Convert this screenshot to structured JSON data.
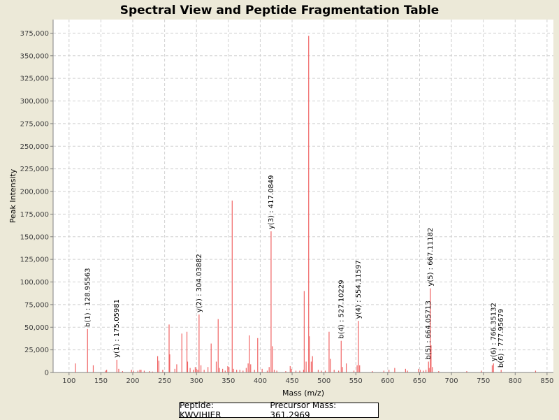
{
  "chart_data": {
    "type": "bar",
    "title": "Spectral View and Peptide Fragmentation Table",
    "xlabel": "Mass (m/z)",
    "ylabel": "Peak Intensity",
    "xlim": [
      75,
      860
    ],
    "ylim": [
      0,
      390000
    ],
    "grid": true,
    "xticks": [
      100,
      150,
      200,
      250,
      300,
      350,
      400,
      450,
      500,
      550,
      600,
      650,
      700,
      750,
      800,
      850
    ],
    "yticks": [
      0,
      25000,
      50000,
      75000,
      100000,
      125000,
      150000,
      175000,
      200000,
      225000,
      250000,
      275000,
      300000,
      325000,
      350000,
      375000
    ],
    "series_color": "#f06464",
    "peaks": [
      [
        110,
        10000
      ],
      [
        129,
        48000
      ],
      [
        138,
        8000
      ],
      [
        157,
        2000
      ],
      [
        159,
        3000
      ],
      [
        175,
        14000
      ],
      [
        178,
        4000
      ],
      [
        184,
        1500
      ],
      [
        198,
        3000
      ],
      [
        201,
        2000
      ],
      [
        208,
        2000
      ],
      [
        211,
        3000
      ],
      [
        213,
        3000
      ],
      [
        218,
        2000
      ],
      [
        226,
        1500
      ],
      [
        231,
        1000
      ],
      [
        239,
        18000
      ],
      [
        241,
        13000
      ],
      [
        247,
        3000
      ],
      [
        257,
        53000
      ],
      [
        258,
        20000
      ],
      [
        266,
        4000
      ],
      [
        269,
        9000
      ],
      [
        277,
        43000
      ],
      [
        285,
        45000
      ],
      [
        286,
        12000
      ],
      [
        290,
        5000
      ],
      [
        295,
        3000
      ],
      [
        298,
        6000
      ],
      [
        300,
        4000
      ],
      [
        302,
        3000
      ],
      [
        304,
        64000
      ],
      [
        307,
        8000
      ],
      [
        312,
        3000
      ],
      [
        318,
        6000
      ],
      [
        323,
        32000
      ],
      [
        331,
        12000
      ],
      [
        334,
        59000
      ],
      [
        336,
        5000
      ],
      [
        341,
        4000
      ],
      [
        345,
        2000
      ],
      [
        349,
        7000
      ],
      [
        351,
        6000
      ],
      [
        356,
        190000
      ],
      [
        358,
        4000
      ],
      [
        363,
        3000
      ],
      [
        368,
        3000
      ],
      [
        373,
        2000
      ],
      [
        378,
        5000
      ],
      [
        381,
        10000
      ],
      [
        383,
        41000
      ],
      [
        385,
        9000
      ],
      [
        391,
        3000
      ],
      [
        396,
        38000
      ],
      [
        403,
        4000
      ],
      [
        411,
        2000
      ],
      [
        414,
        6000
      ],
      [
        417,
        156000
      ],
      [
        419,
        29000
      ],
      [
        422,
        3000
      ],
      [
        426,
        2000
      ],
      [
        440,
        1500
      ],
      [
        447,
        7000
      ],
      [
        449,
        4000
      ],
      [
        456,
        2000
      ],
      [
        462,
        2000
      ],
      [
        468,
        3000
      ],
      [
        469,
        90000
      ],
      [
        472,
        12000
      ],
      [
        476,
        372000
      ],
      [
        477,
        40000
      ],
      [
        480,
        12000
      ],
      [
        482,
        18000
      ],
      [
        491,
        3000
      ],
      [
        496,
        2000
      ],
      [
        502,
        2000
      ],
      [
        508,
        45000
      ],
      [
        510,
        15000
      ],
      [
        516,
        3000
      ],
      [
        523,
        2000
      ],
      [
        527,
        35000
      ],
      [
        529,
        6000
      ],
      [
        535,
        10000
      ],
      [
        547,
        2000
      ],
      [
        552,
        8000
      ],
      [
        554,
        57000
      ],
      [
        556,
        8000
      ],
      [
        576,
        1500
      ],
      [
        594,
        2000
      ],
      [
        602,
        3000
      ],
      [
        611,
        5000
      ],
      [
        628,
        4000
      ],
      [
        631,
        2000
      ],
      [
        648,
        4000
      ],
      [
        651,
        3000
      ],
      [
        656,
        2000
      ],
      [
        660,
        3000
      ],
      [
        664,
        12000
      ],
      [
        665,
        5000
      ],
      [
        667,
        93000
      ],
      [
        668,
        30000
      ],
      [
        670,
        6000
      ],
      [
        680,
        1500
      ],
      [
        724,
        1500
      ],
      [
        747,
        2000
      ],
      [
        764,
        8000
      ],
      [
        766,
        10000
      ],
      [
        778,
        3000
      ],
      [
        832,
        2000
      ]
    ],
    "annotations": [
      {
        "mz": 129,
        "text": "b(1) : 128.95563"
      },
      {
        "mz": 175,
        "text": "y(1) : 175.05981"
      },
      {
        "mz": 304,
        "text": "y(2) : 304.03882"
      },
      {
        "mz": 417,
        "text": "y(3) : 417.0849"
      },
      {
        "mz": 527,
        "text": "b(4) : 527.10229"
      },
      {
        "mz": 554,
        "text": "y(4) : 554.11597"
      },
      {
        "mz": 664,
        "text": "b(5) : 664.05713"
      },
      {
        "mz": 667,
        "text": "y(5) : 667.11182"
      },
      {
        "mz": 766,
        "text": "y(6) : 766.35132"
      },
      {
        "mz": 778,
        "text": "b(6) : 777.95679"
      }
    ],
    "legend": {
      "peptide": "Peptide: KWVIHIER",
      "precursor": "Precursor Mass: 361.2969"
    }
  }
}
